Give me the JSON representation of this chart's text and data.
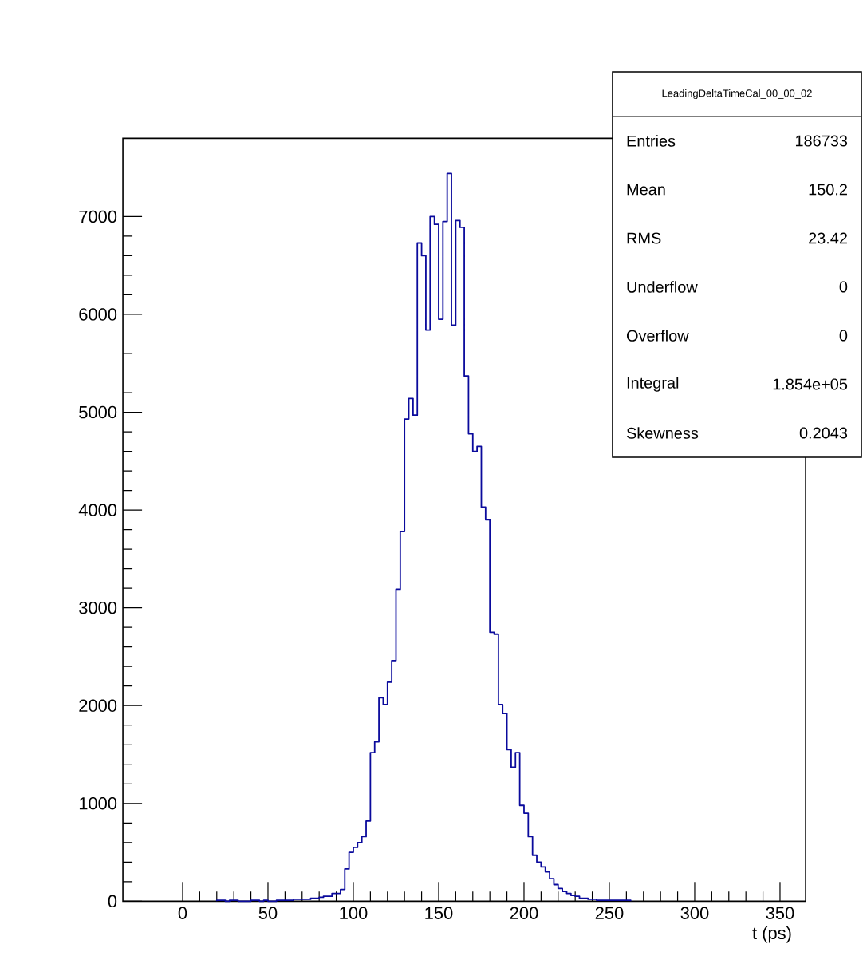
{
  "chart_data": {
    "type": "histogram",
    "xlabel": "t (ps)",
    "color": "#0a0a9c",
    "bins": [
      20,
      22.5,
      25,
      27.5,
      30,
      32.5,
      35,
      37.5,
      40,
      42.5,
      45,
      47.5,
      50,
      52.5,
      55,
      57.5,
      60,
      62.5,
      65,
      67.5,
      70,
      72.5,
      75,
      77.5,
      80,
      82.5,
      85,
      87.5,
      90,
      92.5,
      95,
      97.5,
      100,
      102.5,
      105,
      107.5,
      110,
      112.5,
      115,
      117.5,
      120,
      122.5,
      125,
      127.5,
      130,
      132.5,
      135,
      137.5,
      140,
      142.5,
      145,
      147.5,
      150,
      152.5,
      155,
      157.5,
      160,
      162.5,
      165,
      167.5,
      170,
      172.5,
      175,
      177.5,
      180,
      182.5,
      185,
      187.5,
      190,
      192.5,
      195,
      197.5,
      200,
      202.5,
      205,
      207.5,
      210,
      212.5,
      215,
      217.5,
      220,
      222.5,
      225,
      227.5,
      230,
      232.5,
      235,
      237.5,
      240,
      242.5,
      245,
      247.5,
      250,
      252.5,
      255,
      257.5,
      260,
      262.5
    ],
    "values": [
      10,
      10,
      0,
      10,
      10,
      0,
      0,
      0,
      10,
      10,
      0,
      10,
      0,
      0,
      10,
      10,
      10,
      10,
      20,
      20,
      20,
      20,
      30,
      30,
      40,
      50,
      50,
      80,
      80,
      120,
      330,
      500,
      550,
      600,
      660,
      820,
      1520,
      1630,
      2080,
      2010,
      2240,
      2460,
      3190,
      3780,
      4930,
      5140,
      4970,
      6730,
      6600,
      5840,
      7000,
      6920,
      5950,
      6950,
      7440,
      5890,
      6960,
      6890,
      5370,
      4780,
      4600,
      4650,
      4030,
      3900,
      2750,
      2730,
      2010,
      1920,
      1550,
      1370,
      1520,
      980,
      900,
      660,
      470,
      400,
      350,
      300,
      230,
      170,
      130,
      100,
      80,
      60,
      50,
      30,
      30,
      20,
      20,
      10,
      10,
      10,
      10,
      10,
      10,
      10,
      10
    ],
    "xlim": [
      -35,
      365
    ],
    "ylim": [
      0,
      7800
    ],
    "xticks": [
      0,
      50,
      100,
      150,
      200,
      250,
      300,
      350
    ],
    "yticks": [
      0,
      1000,
      2000,
      3000,
      4000,
      5000,
      6000,
      7000
    ],
    "annotations": [
      "LeadingDeltaTimeCal_00_00_02",
      "Entries",
      "186733",
      "Mean",
      "150.2",
      "RMS",
      "23.42",
      "Underflow",
      "0",
      "Overflow",
      "0",
      "Integral",
      "1.854e+05",
      "Skewness",
      "0.2043"
    ]
  }
}
